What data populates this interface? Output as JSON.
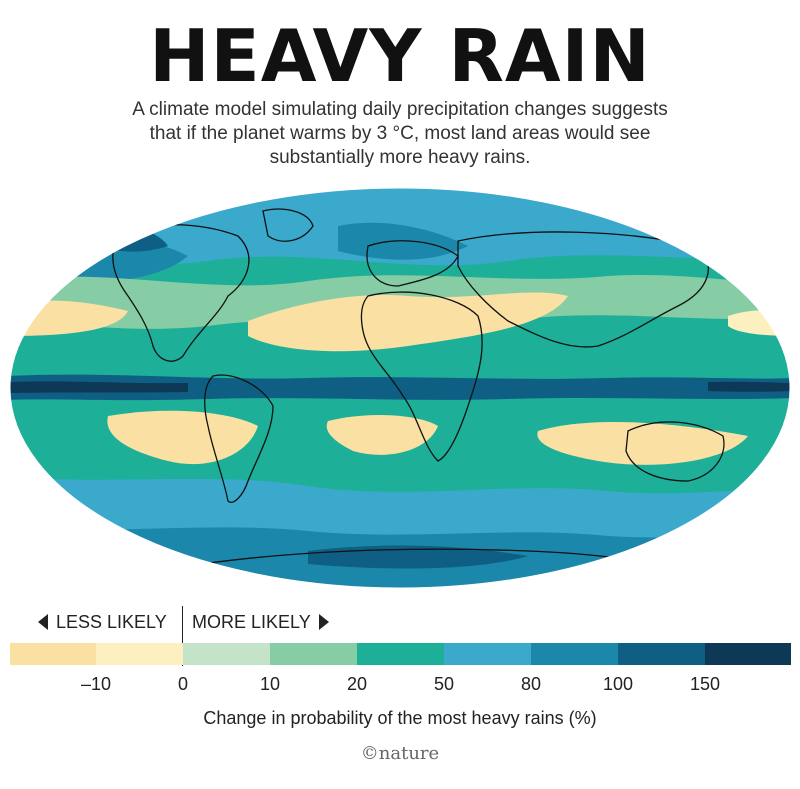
{
  "title": "HEAVY RAIN",
  "subtitle": "A climate model simulating daily precipitation changes suggests that if the planet warms by 3 °C, most land areas would see substantially more heavy rains.",
  "legend": {
    "less_label": "LESS LIKELY",
    "more_label": "MORE LIKELY",
    "tick_labels": [
      "–10",
      "0",
      "10",
      "20",
      "50",
      "80",
      "100",
      "150"
    ],
    "colors": [
      "#fae0a2",
      "#fcefc0",
      "#c4e3c8",
      "#86cca5",
      "#1daf98",
      "#3aa9cc",
      "#1b87aa",
      "#0e5f83",
      "#0d3856"
    ],
    "axis_label": "Change in probability of the most heavy rains (%)"
  },
  "credit": "©nature"
}
